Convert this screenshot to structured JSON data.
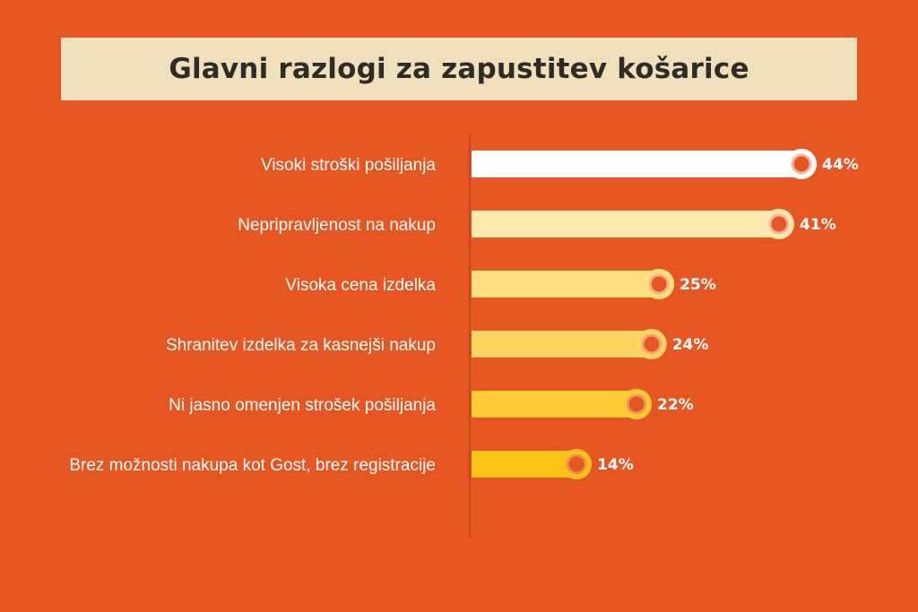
{
  "chart_data": {
    "type": "bar",
    "orientation": "horizontal",
    "title": "Glavni razlogi za zapustitev košarice",
    "categories": [
      "Visoki stroški pošiljanja",
      "Nepripravljenost na nakup",
      "Visoka cena izdelka",
      "Shranitev izdelka za kasnejši nakup",
      "Ni jasno omenjen strošek pošiljanja",
      "Brez možnosti nakupa kot Gost, brez registracije"
    ],
    "values": [
      44,
      41,
      25,
      24,
      22,
      14
    ],
    "value_labels": [
      "44%",
      "41%",
      "25%",
      "24%",
      "22%",
      "14%"
    ],
    "unit": "%",
    "xlim": [
      0,
      44
    ],
    "bar_colors": [
      "#ffffff",
      "#fbe9b0",
      "#fddf7f",
      "#fdd560",
      "#fdcb33",
      "#fbc21a"
    ],
    "marker_colors": [
      "#f2b8a0",
      "#f5b89a",
      "#f6b085",
      "#f5a470",
      "#f19a55",
      "#ee9448"
    ],
    "background_color": "#e55623",
    "title_background": "#efdfba",
    "grid": false,
    "legend": "none"
  }
}
